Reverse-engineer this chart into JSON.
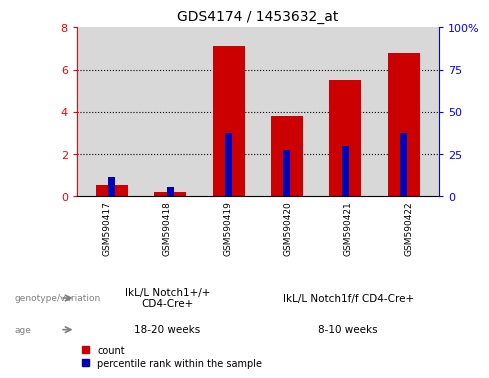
{
  "title": "GDS4174 / 1453632_at",
  "samples": [
    "GSM590417",
    "GSM590418",
    "GSM590419",
    "GSM590420",
    "GSM590421",
    "GSM590422"
  ],
  "count_values": [
    0.55,
    0.2,
    7.1,
    3.8,
    5.5,
    6.8
  ],
  "percentile_values": [
    11.25,
    5.625,
    37.5,
    27.5,
    30.0,
    37.5
  ],
  "ylim_left": [
    0,
    8
  ],
  "ylim_right": [
    0,
    100
  ],
  "yticks_left": [
    0,
    2,
    4,
    6,
    8
  ],
  "yticks_right": [
    0,
    25,
    50,
    75,
    100
  ],
  "ytick_labels_right": [
    "0",
    "25",
    "50",
    "75",
    "100%"
  ],
  "bar_color_red": "#cc0000",
  "bar_color_blue": "#0000bb",
  "group1_label": "IkL/L Notch1+/+\nCD4-Cre+",
  "group2_label": "IkL/L Notch1f/f CD4-Cre+",
  "group1_age": "18-20 weeks",
  "group2_age": "8-10 weeks",
  "genotype_label": "genotype/variation",
  "age_label": "age",
  "legend_count": "count",
  "legend_percentile": "percentile rank within the sample",
  "group1_color": "#90ee90",
  "group2_color": "#90ee90",
  "age1_color": "#ee82ee",
  "age2_color": "#ee82ee",
  "bar_width": 0.55,
  "blue_bar_width": 0.12,
  "grid_color": "#000000",
  "plot_bg_color": "#d8d8d8",
  "sample_bg_color": "#c8c8c8",
  "label_color": "#808080"
}
